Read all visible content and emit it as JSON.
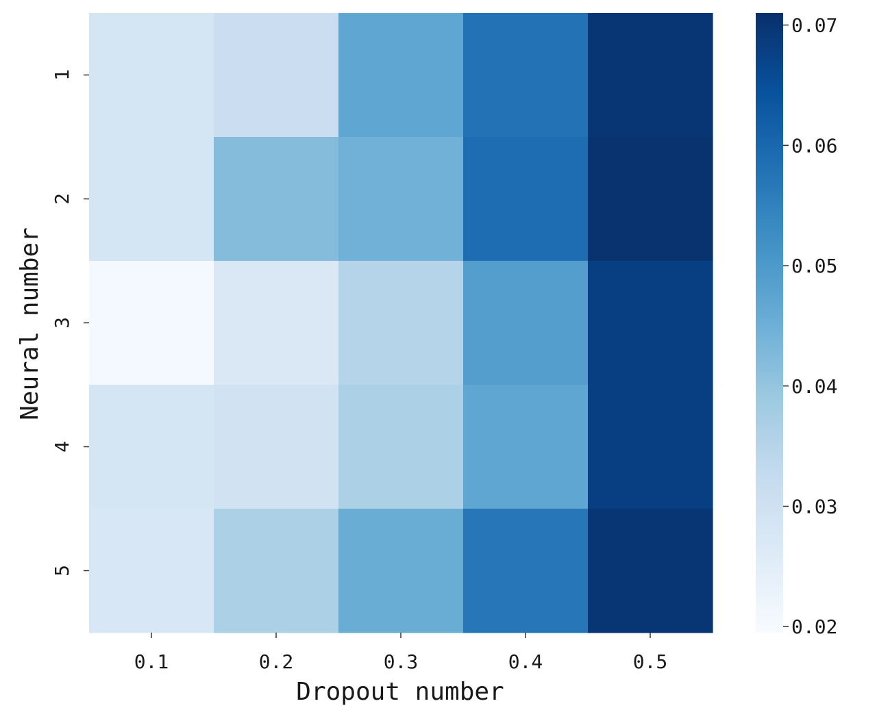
{
  "chart_data": {
    "type": "heatmap",
    "xlabel": "Dropout number",
    "ylabel": "Neural number",
    "x_categories": [
      "0.1",
      "0.2",
      "0.3",
      "0.4",
      "0.5"
    ],
    "y_categories": [
      "1",
      "2",
      "3",
      "4",
      "5"
    ],
    "values": [
      [
        0.0285,
        0.031,
        0.047,
        0.058,
        0.07
      ],
      [
        0.0285,
        0.042,
        0.0445,
        0.059,
        0.0705
      ],
      [
        0.0205,
        0.027,
        0.035,
        0.049,
        0.068
      ],
      [
        0.0285,
        0.0295,
        0.0365,
        0.047,
        0.068
      ],
      [
        0.0275,
        0.0365,
        0.0455,
        0.057,
        0.07
      ]
    ],
    "colorbar": {
      "min": 0.0195,
      "max": 0.071,
      "ticks": [
        0.02,
        0.03,
        0.04,
        0.05,
        0.06,
        0.07
      ],
      "tick_labels": [
        "0.02",
        "0.03",
        "0.04",
        "0.05",
        "0.06",
        "0.07"
      ]
    },
    "colormap": "Blues",
    "colormap_stops": [
      "#f7fbff",
      "#deebf7",
      "#c6dbef",
      "#9ecae1",
      "#6baed6",
      "#4292c6",
      "#2171b5",
      "#08519c",
      "#08306b"
    ]
  }
}
